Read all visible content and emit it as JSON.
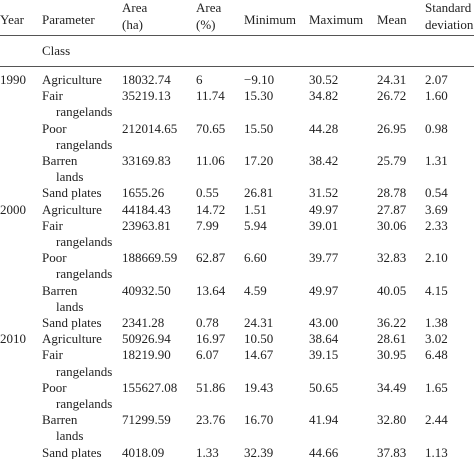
{
  "table": {
    "header": [
      "Year",
      "Parameter",
      [
        "Area",
        "(ha)"
      ],
      [
        "Area",
        "(%)"
      ],
      "Minimum",
      "Maximum",
      "Mean",
      [
        "Standard",
        "deviation"
      ]
    ],
    "subheader": "Class",
    "groups": [
      {
        "year": "1990",
        "rows": [
          {
            "class": [
              "Agriculture"
            ],
            "values": [
              "18032.74",
              "6",
              "−9.10",
              "30.52",
              "24.31",
              "2.07"
            ]
          },
          {
            "class": [
              "Fair",
              "rangelands"
            ],
            "values": [
              "35219.13",
              "11.74",
              "15.30",
              "34.82",
              "26.72",
              "1.60"
            ]
          },
          {
            "class": [
              "Poor",
              "rangelands"
            ],
            "values": [
              "212014.65",
              "70.65",
              "15.50",
              "44.28",
              "26.95",
              "0.98"
            ]
          },
          {
            "class": [
              "Barren",
              "lands"
            ],
            "values": [
              "33169.83",
              "11.06",
              "17.20",
              "38.42",
              "25.79",
              "1.31"
            ]
          },
          {
            "class": [
              "Sand plates"
            ],
            "values": [
              "1655.26",
              "0.55",
              "26.81",
              "31.52",
              "28.78",
              "0.54"
            ]
          }
        ]
      },
      {
        "year": "2000",
        "rows": [
          {
            "class": [
              "Agriculture"
            ],
            "values": [
              "44184.43",
              "14.72",
              "1.51",
              "49.97",
              "27.87",
              "3.69"
            ]
          },
          {
            "class": [
              "Fair",
              "rangelands"
            ],
            "values": [
              "23963.81",
              "7.99",
              "5.94",
              "39.01",
              "30.06",
              "2.33"
            ]
          },
          {
            "class": [
              "Poor",
              "rangelands"
            ],
            "values": [
              "188669.59",
              "62.87",
              "6.60",
              "39.77",
              "32.83",
              "2.10"
            ]
          },
          {
            "class": [
              "Barren",
              "lands"
            ],
            "values": [
              "40932.50",
              "13.64",
              "4.59",
              "49.97",
              "40.05",
              "4.15"
            ]
          },
          {
            "class": [
              "Sand plates"
            ],
            "values": [
              "2341.28",
              "0.78",
              "24.31",
              "43.00",
              "36.22",
              "1.38"
            ]
          }
        ]
      },
      {
        "year": "2010",
        "rows": [
          {
            "class": [
              "Agriculture"
            ],
            "values": [
              "50926.94",
              "16.97",
              "10.50",
              "38.64",
              "28.61",
              "3.02"
            ]
          },
          {
            "class": [
              "Fair",
              "rangelands"
            ],
            "values": [
              "18219.90",
              "6.07",
              "14.67",
              "39.15",
              "30.95",
              "6.48"
            ]
          },
          {
            "class": [
              "Poor",
              "rangelands"
            ],
            "values": [
              "155627.08",
              "51.86",
              "19.43",
              "50.65",
              "34.49",
              "1.65"
            ]
          },
          {
            "class": [
              "Barren",
              "lands"
            ],
            "values": [
              "71299.59",
              "23.76",
              "16.70",
              "41.94",
              "32.80",
              "2.44"
            ]
          },
          {
            "class": [
              "Sand plates"
            ],
            "values": [
              "4018.09",
              "1.33",
              "32.39",
              "44.66",
              "37.83",
              "1.13"
            ]
          }
        ]
      }
    ]
  }
}
